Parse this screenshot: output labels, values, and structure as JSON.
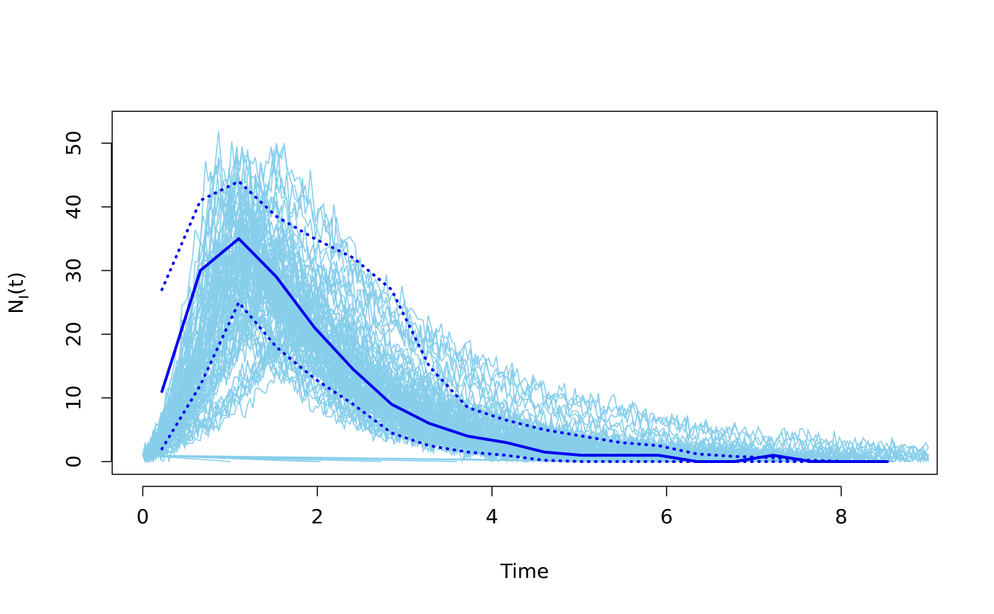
{
  "chart_data": {
    "type": "line",
    "title": "",
    "xlabel": "Time",
    "ylabel": {
      "main": "N",
      "subscript": "I",
      "suffix": "(t)"
    },
    "xlim": [
      -0.35,
      9.1
    ],
    "ylim": [
      -2,
      55
    ],
    "x_ticks": [
      0,
      2,
      4,
      6,
      8
    ],
    "y_ticks": [
      0,
      10,
      20,
      30,
      40,
      50
    ],
    "grid": false,
    "legend": "none",
    "colors": {
      "trajectories": "#87CEEB",
      "summary": "#0000EE"
    },
    "trajectories_count": 100,
    "series": [
      {
        "role": "median",
        "style": "solid",
        "x": [
          0.22,
          0.66,
          1.1,
          1.53,
          1.97,
          2.41,
          2.85,
          3.28,
          3.72,
          4.16,
          4.6,
          5.03,
          5.47,
          5.91,
          6.35,
          6.78,
          7.22,
          7.66,
          8.1,
          8.53
        ],
        "y": [
          11,
          30,
          35,
          29,
          21,
          14.5,
          9,
          6,
          4,
          3,
          1.5,
          1,
          1,
          1,
          0,
          0,
          1,
          0,
          0,
          0
        ]
      },
      {
        "role": "upper",
        "style": "dotted",
        "x": [
          0.22,
          0.66,
          1.1,
          1.53,
          1.97,
          2.41,
          2.85,
          3.28,
          3.72,
          4.16,
          4.6,
          5.03,
          5.47,
          5.91,
          6.35,
          6.78,
          7.22,
          7.66,
          8.1,
          8.53
        ],
        "y": [
          27,
          41,
          44,
          38.5,
          35,
          32,
          27,
          15,
          8.5,
          6.5,
          5,
          4,
          3,
          2.5,
          1.2,
          0.8,
          0.6,
          0.2,
          0,
          0
        ]
      },
      {
        "role": "lower",
        "style": "dotted",
        "x": [
          0.22,
          0.66,
          1.1,
          1.53,
          1.97,
          2.41,
          2.85,
          3.28,
          3.72,
          4.16,
          4.6,
          5.03,
          5.47,
          5.91,
          6.35,
          6.78,
          7.22,
          7.66,
          8.1,
          8.53
        ],
        "y": [
          2,
          12,
          25,
          18,
          13,
          9,
          4.5,
          2.5,
          1.5,
          1,
          0.2,
          0,
          0,
          0,
          0,
          0,
          0,
          0,
          0,
          0
        ]
      }
    ]
  }
}
